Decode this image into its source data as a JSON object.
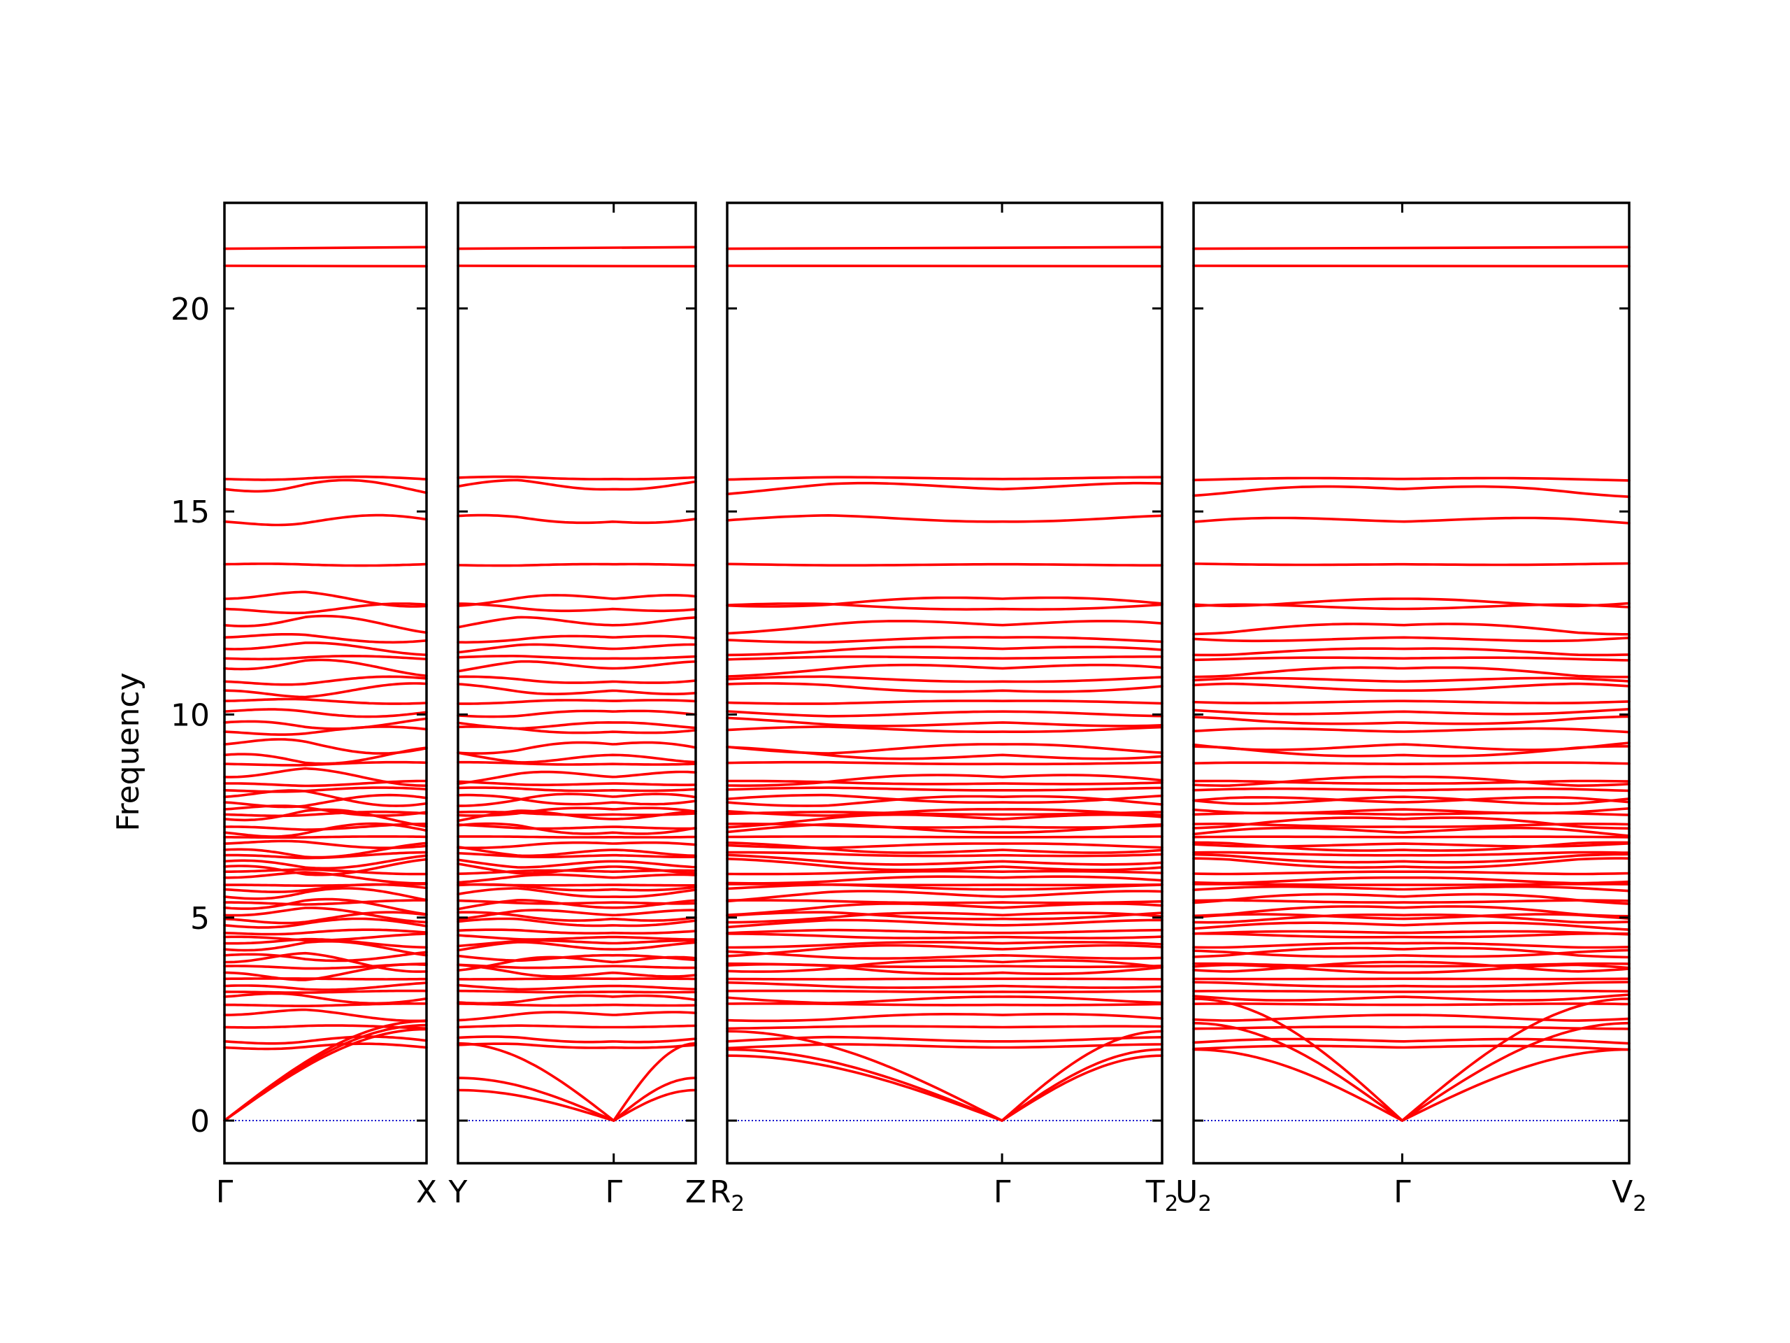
{
  "chart_data": {
    "type": "line",
    "title": "",
    "ylabel": "Frequency",
    "ylim": [
      -1.05,
      22.6
    ],
    "yticks": [
      0,
      5,
      10,
      15,
      20
    ],
    "band_color": "#ff0000",
    "zero_line_color": "#0000cc",
    "panels": [
      {
        "id": "p1",
        "labels": [
          "Γ",
          "X"
        ],
        "sub": [
          "",
          ""
        ],
        "path": [
          "Γ",
          "X"
        ]
      },
      {
        "id": "p2",
        "labels": [
          "Y",
          "Γ",
          "Z"
        ],
        "sub": [
          "",
          "",
          ""
        ],
        "path": [
          "Y",
          "Γ",
          "Z"
        ]
      },
      {
        "id": "p3",
        "labels": [
          "R",
          "Γ",
          "T"
        ],
        "sub": [
          "2",
          "",
          "2"
        ],
        "path": [
          "R2",
          "Γ",
          "T2"
        ]
      },
      {
        "id": "p4",
        "labels": [
          "U",
          "Γ",
          "V"
        ],
        "sub": [
          "2",
          "",
          "2"
        ],
        "path": [
          "U2",
          "Γ",
          "V2"
        ]
      }
    ],
    "band_summary": {
      "acoustic_at_gamma": 0,
      "top_bands": [
        21.0,
        21.5
      ],
      "upper_group": [
        13.7,
        14.7,
        15.5,
        15.8
      ],
      "main_range": [
        1.8,
        13.0
      ]
    }
  }
}
